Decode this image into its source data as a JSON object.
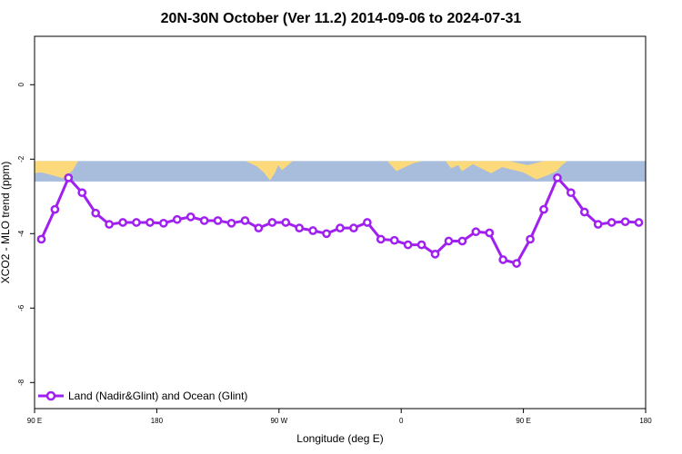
{
  "chart_data": {
    "type": "line",
    "title": "20N-30N October (Ver 11.2)   2014-09-06 to 2024-07-31",
    "xlabel": "Longitude (deg E)",
    "ylabel": "XCO2 - MLO trend (ppm)",
    "xlim": [
      -90,
      180
    ],
    "ylim": [
      -8.7,
      1.3
    ],
    "grid": false,
    "legend_position": "bottom-left",
    "x_ticks": [
      {
        "value": -90,
        "label": "90 E"
      },
      {
        "value": -36,
        "label": "180"
      },
      {
        "value": 18,
        "label": "90 W"
      },
      {
        "value": 72,
        "label": "0"
      },
      {
        "value": 126,
        "label": "90 E"
      },
      {
        "value": 180,
        "label": "180"
      }
    ],
    "y_ticks": [
      {
        "value": 0,
        "label": "0"
      },
      {
        "value": -2,
        "label": "-2"
      },
      {
        "value": -4,
        "label": "-4"
      },
      {
        "value": -6,
        "label": "-6"
      },
      {
        "value": -8,
        "label": "-8"
      }
    ],
    "map_strip": {
      "y_top": -2.05,
      "y_bottom": -2.6,
      "ocean_color": "#a8bcdc",
      "land_color": "#fcd97a"
    },
    "series": [
      {
        "name": "Land (Nadir&Glint) and Ocean (Glint)",
        "color": "#a020f0",
        "x": [
          -87,
          -81,
          -75,
          -69,
          -63,
          -57,
          -51,
          -45,
          -39,
          -33,
          -27,
          -21,
          -15,
          -9,
          -3,
          3,
          9,
          15,
          21,
          27,
          33,
          39,
          45,
          51,
          57,
          63,
          69,
          75,
          81,
          87,
          93,
          99,
          105,
          111,
          117,
          123,
          129,
          135,
          141,
          147,
          153,
          159,
          165,
          171,
          177
        ],
        "values": [
          -4.15,
          -3.35,
          -2.5,
          -2.9,
          -3.45,
          -3.75,
          -3.7,
          -3.7,
          -3.7,
          -3.72,
          -3.62,
          -3.55,
          -3.65,
          -3.65,
          -3.72,
          -3.65,
          -3.85,
          -3.7,
          -3.7,
          -3.85,
          -3.92,
          -4.0,
          -3.85,
          -3.85,
          -3.7,
          -4.15,
          -4.18,
          -4.3,
          -4.3,
          -4.55,
          -4.2,
          -4.2,
          -3.95,
          -3.98,
          -4.7,
          -4.8,
          -4.15,
          -3.35,
          -2.5,
          -2.9,
          -3.42,
          -3.75,
          -3.7,
          -3.68,
          -3.7
        ]
      }
    ]
  }
}
